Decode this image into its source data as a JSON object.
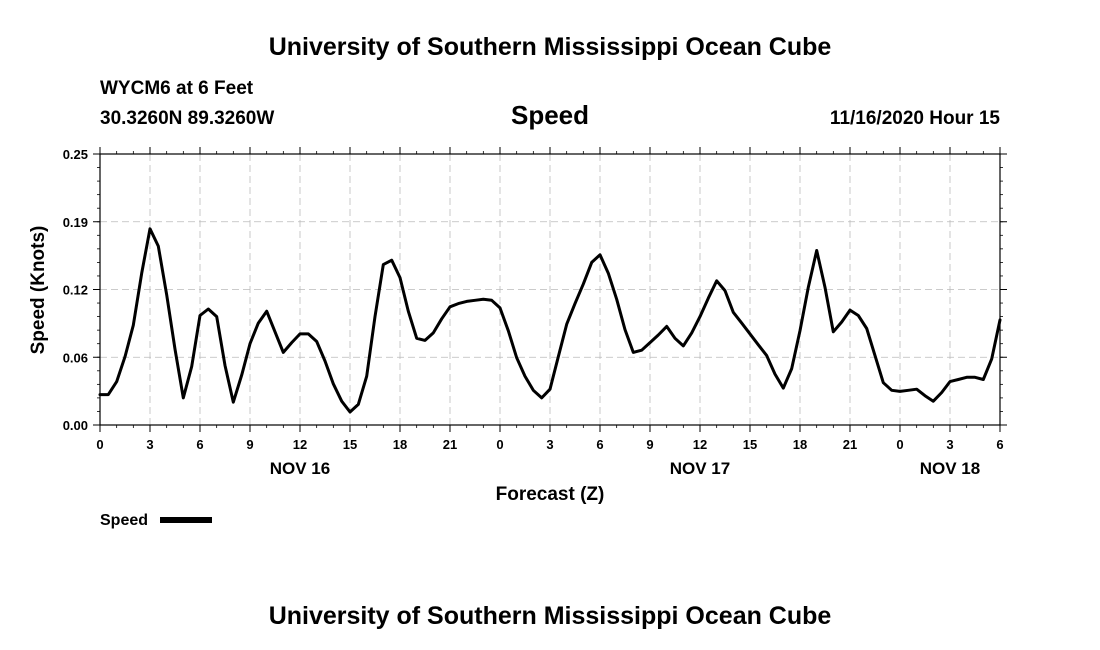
{
  "header": {
    "title_top": "University of Southern Mississippi Ocean Cube",
    "station": "WYCM6 at 6 Feet",
    "location": "30.3260N 89.3260W",
    "variable": "Speed",
    "timestamp": "11/16/2020 Hour 15",
    "title_bottom": "University of Southern Mississippi Ocean Cube"
  },
  "chart_data": {
    "type": "line",
    "xlabel": "Forecast (Z)",
    "ylabel": "Speed (Knots)",
    "ylim": [
      0,
      0.25
    ],
    "y_ticks": [
      {
        "value": 0,
        "label": "0.00"
      },
      {
        "value": 0.0625,
        "label": "0.06"
      },
      {
        "value": 0.125,
        "label": "0.12"
      },
      {
        "value": 0.1875,
        "label": "0.19"
      },
      {
        "value": 0.25,
        "label": "0.25"
      }
    ],
    "x_range_hours": [
      0,
      54
    ],
    "x_tick_labels": [
      "0",
      "3",
      "6",
      "9",
      "12",
      "15",
      "18",
      "21",
      "0",
      "3",
      "6",
      "9",
      "12",
      "15",
      "18",
      "21",
      "0",
      "3",
      "6"
    ],
    "date_labels": [
      {
        "hour": 12,
        "label": "NOV 16"
      },
      {
        "hour": 36,
        "label": "NOV 17"
      },
      {
        "hour": 51,
        "label": "NOV 18"
      }
    ],
    "grid": true,
    "legend": {
      "position": "bottom-left",
      "label": "Speed"
    },
    "series": [
      {
        "name": "Speed",
        "color": "#000000",
        "x": [
          0,
          0.5,
          1,
          1.5,
          2,
          2.5,
          3,
          3.5,
          4,
          4.5,
          5,
          5.5,
          6,
          6.5,
          7,
          7.5,
          8,
          8.5,
          9,
          9.5,
          10,
          10.5,
          11,
          11.5,
          12,
          12.5,
          13,
          13.5,
          14,
          14.5,
          15,
          15.5,
          16,
          16.5,
          17,
          17.5,
          18,
          18.5,
          19,
          19.5,
          20,
          20.5,
          21,
          21.5,
          22,
          22.5,
          23,
          23.5,
          24,
          24.5,
          25,
          25.5,
          26,
          26.5,
          27,
          27.5,
          28,
          28.5,
          29,
          29.5,
          30,
          30.5,
          31,
          31.5,
          32,
          32.5,
          33,
          33.5,
          34,
          34.5,
          35,
          35.5,
          36,
          36.5,
          37,
          37.5,
          38,
          38.5,
          39,
          39.5,
          40,
          40.5,
          41,
          41.5,
          42,
          42.5,
          43,
          43.5,
          44,
          44.5,
          45,
          45.5,
          46,
          46.5,
          47,
          47.5,
          48,
          48.5,
          49,
          49.5,
          50,
          50.5,
          51,
          51.5,
          52,
          52.5,
          53,
          53.5,
          54
        ],
        "values": [
          0.028,
          0.028,
          0.04,
          0.063,
          0.092,
          0.14,
          0.181,
          0.165,
          0.12,
          0.07,
          0.025,
          0.054,
          0.101,
          0.107,
          0.1,
          0.055,
          0.021,
          0.046,
          0.075,
          0.094,
          0.105,
          0.086,
          0.067,
          0.076,
          0.084,
          0.084,
          0.077,
          0.059,
          0.038,
          0.022,
          0.012,
          0.019,
          0.045,
          0.1,
          0.148,
          0.152,
          0.136,
          0.105,
          0.08,
          0.078,
          0.085,
          0.098,
          0.109,
          0.112,
          0.114,
          0.115,
          0.116,
          0.115,
          0.108,
          0.087,
          0.062,
          0.045,
          0.032,
          0.025,
          0.033,
          0.063,
          0.093,
          0.112,
          0.13,
          0.15,
          0.157,
          0.14,
          0.116,
          0.088,
          0.067,
          0.069,
          0.076,
          0.083,
          0.091,
          0.08,
          0.073,
          0.085,
          0.1,
          0.117,
          0.133,
          0.124,
          0.104,
          0.094,
          0.084,
          0.074,
          0.064,
          0.047,
          0.034,
          0.052,
          0.087,
          0.127,
          0.161,
          0.127,
          0.086,
          0.095,
          0.106,
          0.101,
          0.089,
          0.064,
          0.039,
          0.032,
          0.031,
          0.032,
          0.033,
          0.027,
          0.022,
          0.03,
          0.04,
          0.042,
          0.044,
          0.044,
          0.042,
          0.061,
          0.097
        ]
      }
    ]
  }
}
